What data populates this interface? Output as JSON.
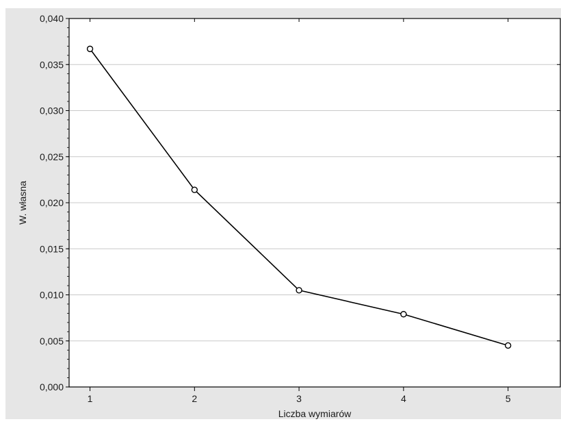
{
  "chart_data": {
    "type": "line",
    "xlabel": "Liczba wymiarów",
    "ylabel": "W. własna",
    "x": [
      1,
      2,
      3,
      4,
      5
    ],
    "x_tick_labels": [
      "1",
      "2",
      "3",
      "4",
      "5"
    ],
    "y_tick_labels": [
      "0,000",
      "0,005",
      "0,010",
      "0,015",
      "0,020",
      "0,025",
      "0,030",
      "0,035",
      "0,040"
    ],
    "xlim": [
      0.8,
      5.5
    ],
    "ylim": [
      0.0,
      0.04
    ],
    "y_ticks": [
      0.0,
      0.005,
      0.01,
      0.015,
      0.02,
      0.025,
      0.03,
      0.035,
      0.04
    ],
    "series": [
      {
        "values": [
          0.0367,
          0.0214,
          0.0105,
          0.0079,
          0.0045
        ]
      }
    ],
    "marker": "open-circle",
    "grid": "horizontal",
    "legend": "none",
    "colors": {
      "frame_background": "#e6e6e6",
      "plot_background": "#ffffff",
      "line": "#000000",
      "gridline": "#c8c8c8"
    }
  }
}
